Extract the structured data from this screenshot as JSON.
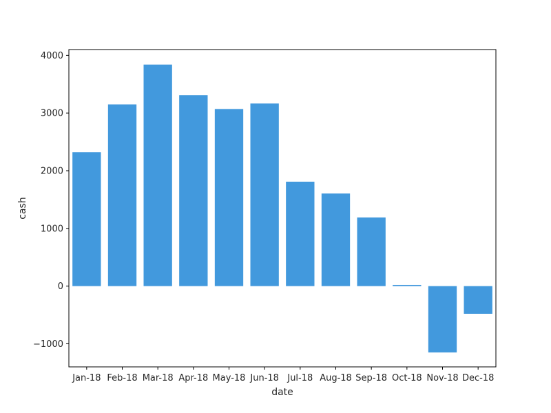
{
  "chart_data": {
    "type": "bar",
    "title": "",
    "xlabel": "date",
    "ylabel": "cash",
    "categories": [
      "Jan-18",
      "Feb-18",
      "Mar-18",
      "Apr-18",
      "May-18",
      "Jun-18",
      "Jul-18",
      "Aug-18",
      "Sep-18",
      "Oct-18",
      "Nov-18",
      "Dec-18"
    ],
    "values": [
      2320,
      3150,
      3840,
      3310,
      3070,
      3165,
      1810,
      1605,
      1190,
      20,
      -1150,
      -480
    ],
    "ylim": [
      -1400,
      4100
    ],
    "yticks": [
      -1000,
      0,
      1000,
      2000,
      3000,
      4000
    ],
    "ytick_labels": [
      "−1000",
      "0",
      "1000",
      "2000",
      "3000",
      "4000"
    ],
    "bar_color": "#4299dd",
    "grid": false,
    "legend": "none"
  }
}
